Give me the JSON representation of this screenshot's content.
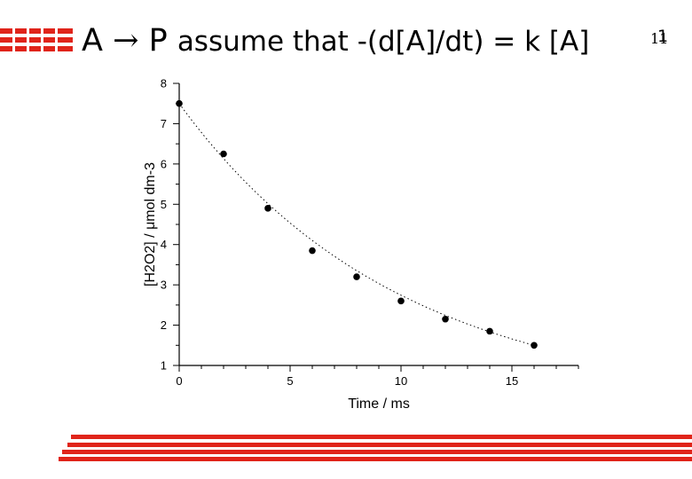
{
  "header": {
    "title_a": "A",
    "arrow": "→",
    "title_p": "P",
    "title_rest": "assume that -(d[A]/dt) = k [A]",
    "exponent": "1",
    "slide_number": "11"
  },
  "colors": {
    "accent_red": "#e0241a",
    "marker": "#000000",
    "fit_line": "#000000"
  },
  "chart_data": {
    "type": "scatter",
    "title": "",
    "xlabel": "Time / ms",
    "ylabel": "[H2O2] / μmol dm-3",
    "xlim": [
      0,
      18
    ],
    "ylim": [
      1,
      8
    ],
    "xticks": [
      0,
      5,
      10,
      15
    ],
    "yticks": [
      1,
      2,
      3,
      4,
      5,
      6,
      7,
      8
    ],
    "grid": false,
    "legend": "none",
    "series": [
      {
        "x": [
          0,
          2,
          4,
          6,
          8,
          10,
          12,
          14,
          16
        ],
        "y": [
          7.5,
          6.25,
          4.9,
          3.85,
          3.2,
          2.6,
          2.15,
          1.85,
          1.5
        ]
      }
    ],
    "fit": {
      "style": "dotted",
      "form": "exponential decay",
      "x_start": 0,
      "x_end": 16
    }
  }
}
